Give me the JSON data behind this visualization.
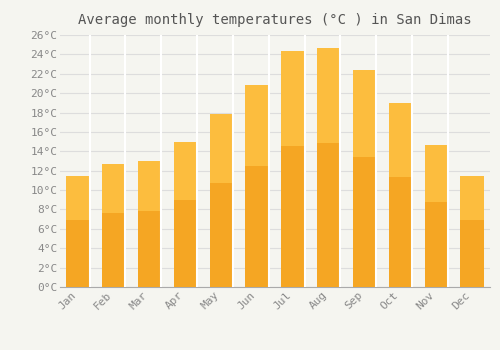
{
  "title": "Average monthly temperatures (°C ) in San Dimas",
  "months": [
    "Jan",
    "Feb",
    "Mar",
    "Apr",
    "May",
    "Jun",
    "Jul",
    "Aug",
    "Sep",
    "Oct",
    "Nov",
    "Dec"
  ],
  "values": [
    11.5,
    12.7,
    13.0,
    15.0,
    17.8,
    20.8,
    24.3,
    24.7,
    22.4,
    19.0,
    14.6,
    11.5
  ],
  "bar_color_bottom": "#F5A623",
  "bar_color_top": "#FFC84A",
  "bar_edge_color": "#FFFFFF",
  "background_color": "#F5F5F0",
  "plot_bg_color": "#F5F5F0",
  "grid_color": "#DDDDDD",
  "tick_label_color": "#888888",
  "title_color": "#555555",
  "ylim": [
    0,
    26
  ],
  "yticks": [
    0,
    2,
    4,
    6,
    8,
    10,
    12,
    14,
    16,
    18,
    20,
    22,
    24,
    26
  ],
  "title_fontsize": 10,
  "tick_fontsize": 8,
  "bar_width": 0.65
}
